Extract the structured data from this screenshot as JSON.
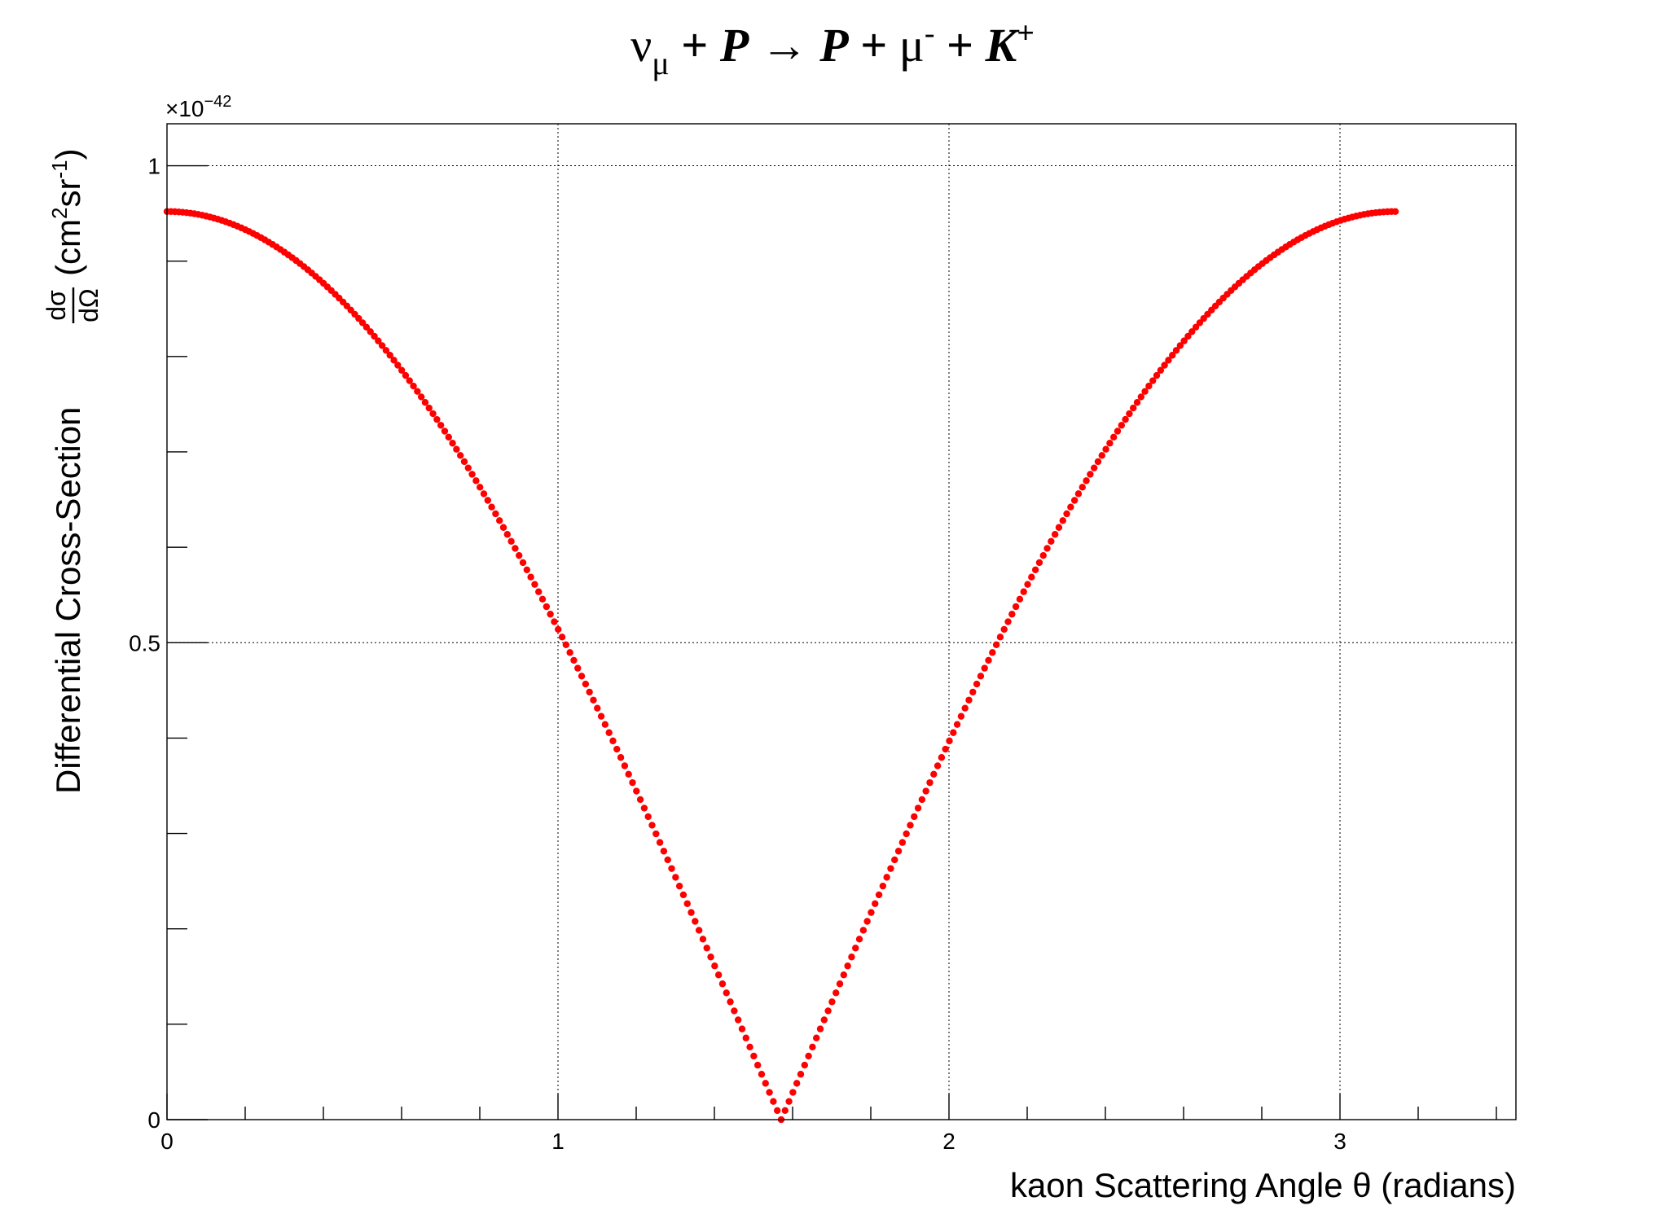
{
  "chart_data": {
    "type": "scatter",
    "title": {
      "nu": "ν",
      "nu_sub": "μ",
      "plus1": " + ",
      "p1": "P",
      "arrow": "  → ",
      "p2": "P",
      "plus2": " +  ",
      "mu": "μ",
      "mu_sup": "-",
      "plus3": " + ",
      "k": "K",
      "k_sup": "+"
    },
    "xlabel": "kaon Scattering Angle θ (radians)",
    "ylabel": {
      "main": "Differential Cross-Section",
      "frac_num": "dσ",
      "frac_den": "dΩ",
      "units_open": "(cm",
      "units_sup1": "2",
      "units_mid": "sr",
      "units_sup2": "-1",
      "units_close": ")"
    },
    "y_multiplier": {
      "prefix": "×10",
      "exponent": "−42"
    },
    "xlim": [
      0,
      3.45
    ],
    "ylim": [
      0,
      1.044
    ],
    "x_ticks": [
      {
        "value": 0,
        "label": "0"
      },
      {
        "value": 1,
        "label": "1"
      },
      {
        "value": 2,
        "label": "2"
      },
      {
        "value": 3,
        "label": "3"
      }
    ],
    "y_ticks": [
      {
        "value": 0,
        "label": "0"
      },
      {
        "value": 0.5,
        "label": "0.5"
      },
      {
        "value": 1,
        "label": "1"
      }
    ],
    "x_minor_step": 0.2,
    "y_minor_step": 0.1,
    "grid": true,
    "marker_color": "#ff0000",
    "series": [
      {
        "function": "peak * |cos(theta)|",
        "peak": 0.952,
        "theta_range": [
          0,
          3.1416
        ],
        "points_count": 314
      }
    ]
  }
}
